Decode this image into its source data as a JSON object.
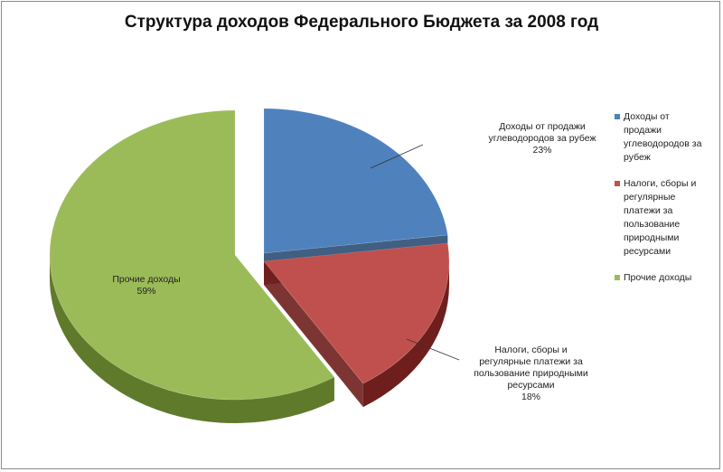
{
  "chart_data": {
    "type": "pie",
    "title": "Структура доходов Федерального Бюджета за 2008 год",
    "slices": [
      {
        "name": "Доходы от продажи углеводородов за рубеж",
        "label_lines": [
          "Доходы от продажи",
          "углеводородов за рубеж"
        ],
        "value": 23,
        "value_label": "23%",
        "color": "#4f81bd",
        "side_color": "#2c4d75"
      },
      {
        "name": "Налоги, сборы и регулярные платежи за пользование природными ресурсами",
        "label_lines": [
          "Налоги, сборы и",
          "регулярные платежи за",
          "пользование природными",
          "ресурсами"
        ],
        "value": 18,
        "value_label": "18%",
        "color": "#c0504d",
        "side_color": "#6e1f1d"
      },
      {
        "name": "Прочие доходы",
        "label_lines": [
          "Прочие доходы"
        ],
        "value": 59,
        "value_label": "59%",
        "color": "#9bbb59",
        "side_color": "#5f7a2b"
      }
    ],
    "legend": {
      "position": "right",
      "items": [
        {
          "lines": [
            "Доходы от",
            "продажи",
            "углеводородов за",
            "рубеж"
          ],
          "color": "#4f81bd"
        },
        {
          "lines": [
            "Налоги, сборы и",
            "регулярные",
            "платежи за",
            "пользование",
            "природными",
            "ресурсами"
          ],
          "color": "#c0504d"
        },
        {
          "lines": [
            "Прочие доходы"
          ],
          "color": "#9bbb59"
        }
      ]
    }
  }
}
